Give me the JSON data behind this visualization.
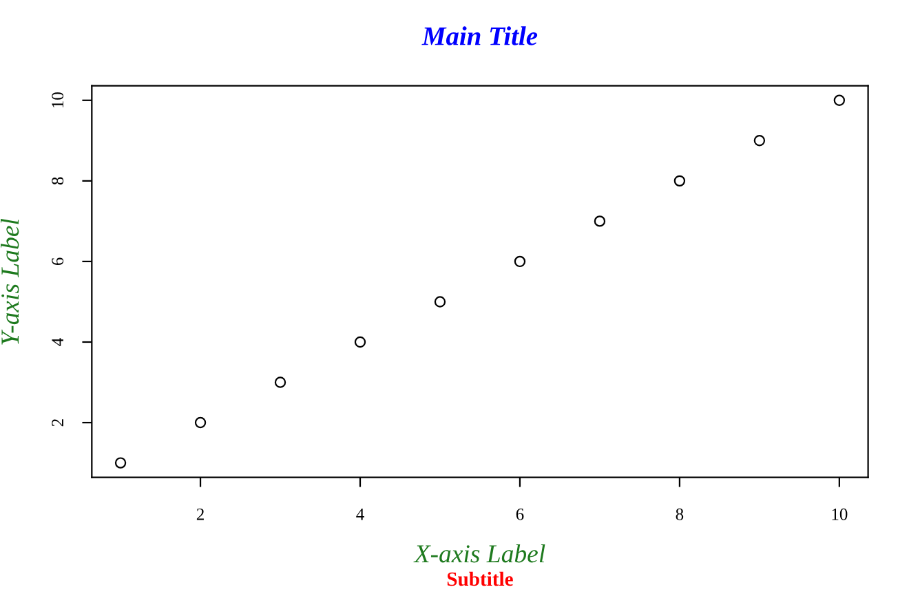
{
  "chart_data": {
    "type": "scatter",
    "title": "Main Title",
    "subtitle": "Subtitle",
    "xlabel": "X-axis Label",
    "ylabel": "Y-axis Label",
    "x": [
      1,
      2,
      3,
      4,
      5,
      6,
      7,
      8,
      9,
      10
    ],
    "series": [
      {
        "color": "#000000",
        "values": [
          1,
          2,
          3,
          4,
          5,
          6,
          7,
          8,
          9,
          10
        ]
      }
    ],
    "xlim": [
      0.64,
      10.36
    ],
    "ylim": [
      0.64,
      10.36
    ],
    "xticks": [
      2,
      4,
      6,
      8,
      10
    ],
    "yticks": [
      2,
      4,
      6,
      8,
      10
    ],
    "marker": "circle",
    "grid": false
  }
}
